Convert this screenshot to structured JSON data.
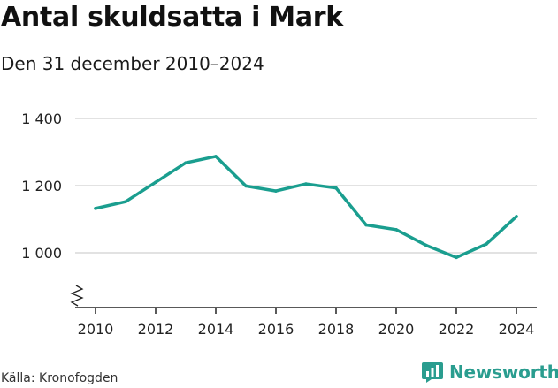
{
  "header": {
    "title": "Antal skuldsatta i Mark",
    "subtitle": "Den 31 december 2010–2024"
  },
  "footer": {
    "source": "Källa: Kronofogden",
    "brand": "Newsworthy"
  },
  "colors": {
    "line": "#1a9e8f",
    "grid": "#d9d9d9",
    "axis": "#222222",
    "brand": "#2a9d8f"
  },
  "chart_data": {
    "type": "line",
    "title": "Antal skuldsatta i Mark",
    "subtitle": "Den 31 december 2010–2024",
    "xlabel": "",
    "ylabel": "",
    "x": [
      2010,
      2011,
      2012,
      2013,
      2014,
      2015,
      2016,
      2017,
      2018,
      2019,
      2020,
      2021,
      2022,
      2023,
      2024
    ],
    "series": [
      {
        "name": "Antal skuldsatta",
        "values": [
          1132,
          1152,
          1210,
          1268,
          1287,
          1199,
          1184,
          1205,
          1193,
          1083,
          1069,
          1022,
          986,
          1026,
          1108
        ]
      }
    ],
    "ylim": [
      900,
      1400
    ],
    "y_ticks": [
      1000,
      1200,
      1400
    ],
    "y_tick_labels": [
      "1 000",
      "1 200",
      "1 400"
    ],
    "x_ticks": [
      2010,
      2012,
      2014,
      2016,
      2018,
      2020,
      2022,
      2024
    ],
    "x_tick_labels": [
      "2010",
      "2012",
      "2014",
      "2016",
      "2018",
      "2020",
      "2022",
      "2024"
    ],
    "axis_break": true,
    "grid": true
  }
}
